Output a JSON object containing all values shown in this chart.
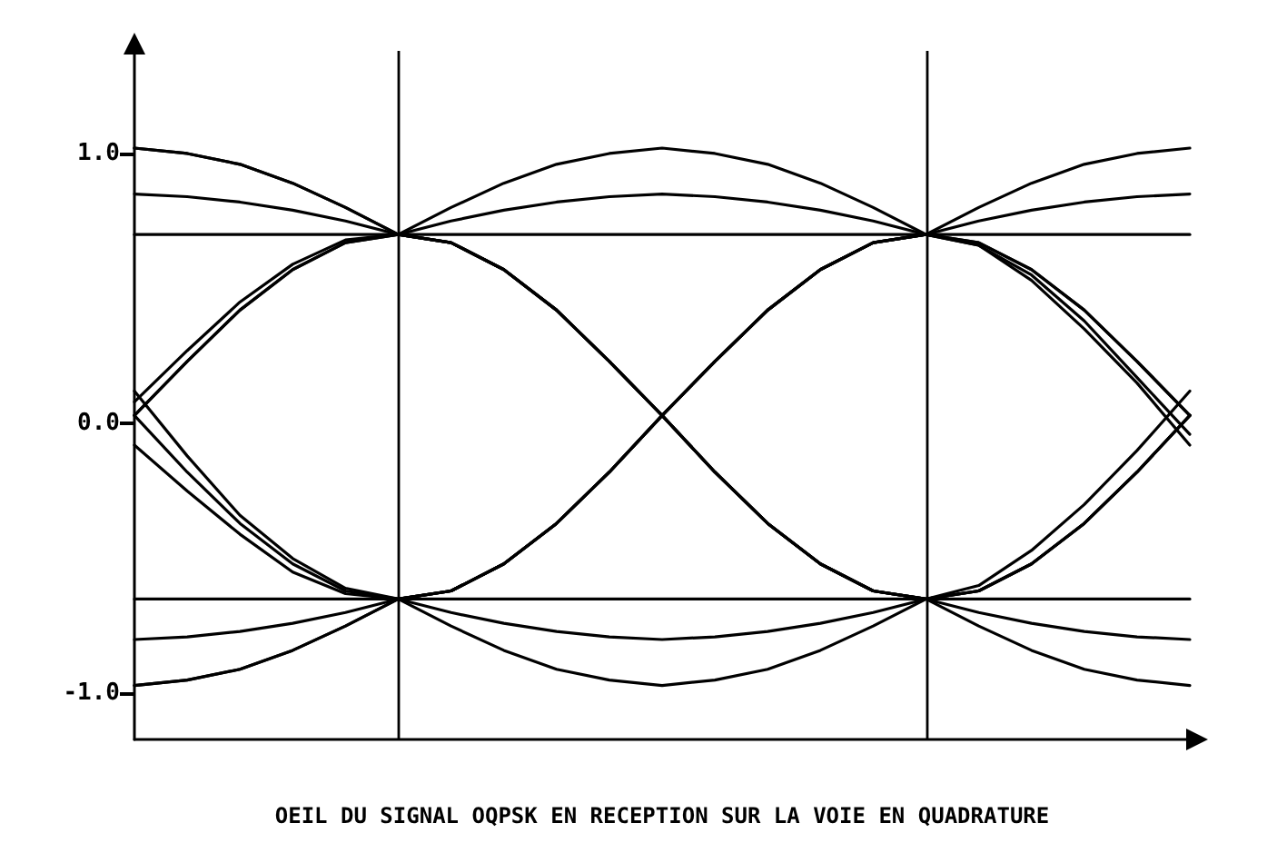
{
  "chart_data": {
    "type": "line",
    "xlabel": "OEIL DU SIGNAL OQPSK EN RECEPTION SUR LA VOIE EN QUADRATURE",
    "categories": [
      null,
      null,
      null,
      null,
      null,
      null,
      null,
      null,
      null,
      null,
      null,
      null,
      null,
      null,
      null,
      null,
      null,
      null,
      null,
      null,
      null
    ],
    "series": [
      {
        "color": "#000000",
        "values": [
          1.02,
          1.0,
          0.96,
          0.89,
          0.8,
          0.7,
          0.67,
          0.57,
          0.42,
          0.23,
          0.03,
          -0.18,
          -0.37,
          -0.52,
          -0.62,
          -0.65,
          -0.62,
          -0.52,
          -0.37,
          -0.18,
          0.03
        ]
      },
      {
        "color": "#000000",
        "values": [
          0.85,
          0.84,
          0.82,
          0.79,
          0.75,
          0.7,
          0.8,
          0.89,
          0.96,
          1.0,
          1.02,
          1.0,
          0.96,
          0.89,
          0.8,
          0.7,
          0.67,
          0.57,
          0.42,
          0.23,
          0.03
        ]
      },
      {
        "color": "#000000",
        "values": [
          0.7,
          0.7,
          0.7,
          0.7,
          0.7,
          0.7,
          0.7,
          0.7,
          0.7,
          0.7,
          0.7,
          0.7,
          0.7,
          0.7,
          0.7,
          0.7,
          0.7,
          0.7,
          0.7,
          0.7,
          0.7
        ]
      },
      {
        "color": "#000000",
        "values": [
          0.03,
          0.23,
          0.42,
          0.57,
          0.67,
          0.7,
          0.67,
          0.57,
          0.42,
          0.23,
          0.03,
          -0.18,
          -0.37,
          -0.52,
          -0.62,
          -0.65,
          -0.75,
          -0.84,
          -0.91,
          -0.95,
          -0.97
        ]
      },
      {
        "color": "#000000",
        "values": [
          0.03,
          -0.18,
          -0.37,
          -0.52,
          -0.62,
          -0.65,
          -0.62,
          -0.52,
          -0.37,
          -0.18,
          0.03,
          0.23,
          0.42,
          0.57,
          0.67,
          0.7,
          0.8,
          0.89,
          0.96,
          1.0,
          1.02
        ]
      },
      {
        "color": "#000000",
        "values": [
          -0.97,
          -0.95,
          -0.91,
          -0.84,
          -0.75,
          -0.65,
          -0.62,
          -0.52,
          -0.37,
          -0.18,
          0.03,
          0.23,
          0.42,
          0.57,
          0.67,
          0.7,
          0.67,
          0.57,
          0.42,
          0.23,
          0.03
        ]
      },
      {
        "color": "#000000",
        "values": [
          -0.8,
          -0.79,
          -0.77,
          -0.74,
          -0.7,
          -0.65,
          -0.75,
          -0.84,
          -0.91,
          -0.95,
          -0.97,
          -0.95,
          -0.91,
          -0.84,
          -0.75,
          -0.65,
          -0.62,
          -0.52,
          -0.37,
          -0.18,
          0.03
        ]
      },
      {
        "color": "#000000",
        "values": [
          -0.65,
          -0.65,
          -0.65,
          -0.65,
          -0.65,
          -0.65,
          -0.65,
          -0.65,
          -0.65,
          -0.65,
          -0.65,
          -0.65,
          -0.65,
          -0.65,
          -0.65,
          -0.65,
          -0.65,
          -0.65,
          -0.65,
          -0.65,
          -0.65
        ]
      },
      {
        "color": "#000000",
        "values": [
          0.08,
          0.27,
          0.45,
          0.59,
          0.68,
          0.7,
          0.75,
          0.79,
          0.82,
          0.84,
          0.85,
          0.84,
          0.82,
          0.79,
          0.75,
          0.7,
          0.66,
          0.55,
          0.38,
          0.17,
          -0.04
        ]
      },
      {
        "color": "#000000",
        "values": [
          0.12,
          -0.12,
          -0.34,
          -0.5,
          -0.61,
          -0.65,
          -0.7,
          -0.74,
          -0.77,
          -0.79,
          -0.8,
          -0.79,
          -0.77,
          -0.74,
          -0.7,
          -0.65,
          -0.6,
          -0.47,
          -0.3,
          -0.1,
          0.12
        ]
      },
      {
        "color": "#000000",
        "values": [
          1.02,
          1.0,
          0.96,
          0.89,
          0.8,
          0.7,
          0.67,
          0.57,
          0.42,
          0.23,
          0.03,
          -0.18,
          -0.37,
          -0.52,
          -0.62,
          -0.65,
          -0.7,
          -0.74,
          -0.77,
          -0.79,
          -0.8
        ]
      },
      {
        "color": "#000000",
        "values": [
          -0.97,
          -0.95,
          -0.91,
          -0.84,
          -0.75,
          -0.65,
          -0.62,
          -0.52,
          -0.37,
          -0.18,
          0.03,
          0.23,
          0.42,
          0.57,
          0.67,
          0.7,
          0.75,
          0.79,
          0.82,
          0.84,
          0.85
        ]
      },
      {
        "color": "#000000",
        "values": [
          0.03,
          0.23,
          0.42,
          0.57,
          0.67,
          0.7,
          0.67,
          0.57,
          0.42,
          0.23,
          0.03,
          -0.18,
          -0.37,
          -0.52,
          -0.62,
          -0.65,
          -0.62,
          -0.52,
          -0.37,
          -0.18,
          0.03
        ]
      },
      {
        "color": "#000000",
        "values": [
          -0.08,
          -0.25,
          -0.41,
          -0.55,
          -0.63,
          -0.65,
          -0.62,
          -0.52,
          -0.37,
          -0.18,
          0.03,
          0.23,
          0.42,
          0.57,
          0.67,
          0.7,
          0.66,
          0.53,
          0.35,
          0.15,
          -0.08
        ]
      }
    ],
    "ylim": [
      -1.17,
      1.38
    ],
    "yticks": [
      {
        "value": 1,
        "label": "1.0"
      },
      {
        "value": 0,
        "label": "0.0"
      },
      {
        "value": -1,
        "label": "-1.0"
      }
    ],
    "tick_labels": "y",
    "grid": false,
    "marker": "none",
    "line_style": "solid"
  }
}
